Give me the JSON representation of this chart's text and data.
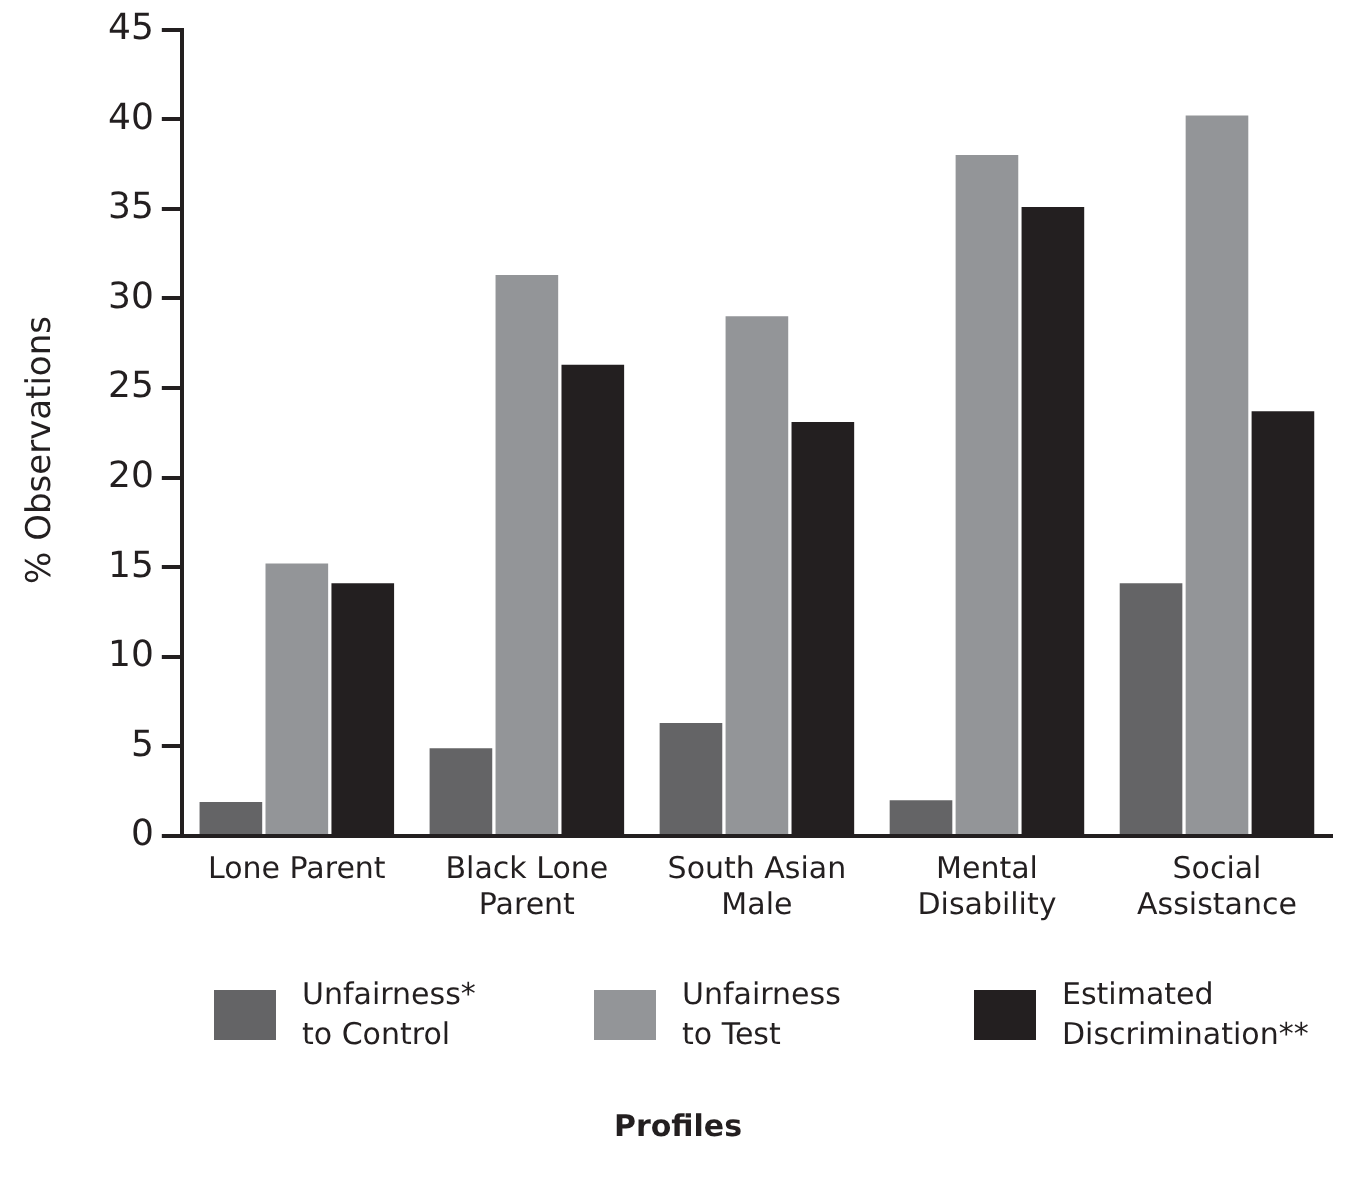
{
  "chart_data": {
    "type": "bar",
    "annotations": [
      "Profiles"
    ],
    "ylabel": "% Observations",
    "categories": [
      "Lone Parent",
      "Black Lone Parent",
      "South Asian Male",
      "Mental Disability",
      "Social Assistance"
    ],
    "series": [
      {
        "name": "Unfairness* to Control",
        "color": "#646466",
        "values": [
          1.9,
          4.9,
          6.3,
          2.0,
          14.1
        ]
      },
      {
        "name": "Unfairness to Test",
        "color": "#939598",
        "values": [
          15.2,
          31.3,
          29.0,
          38.0,
          40.2
        ]
      },
      {
        "name": "Estimated Discrimination**",
        "color": "#231f20",
        "values": [
          14.1,
          26.3,
          23.1,
          35.1,
          23.7
        ]
      }
    ],
    "ylim": [
      0,
      45
    ],
    "yticks": [
      0,
      5,
      10,
      15,
      20,
      25,
      30,
      35,
      40,
      45
    ],
    "grid": false,
    "legend": "bottom"
  }
}
